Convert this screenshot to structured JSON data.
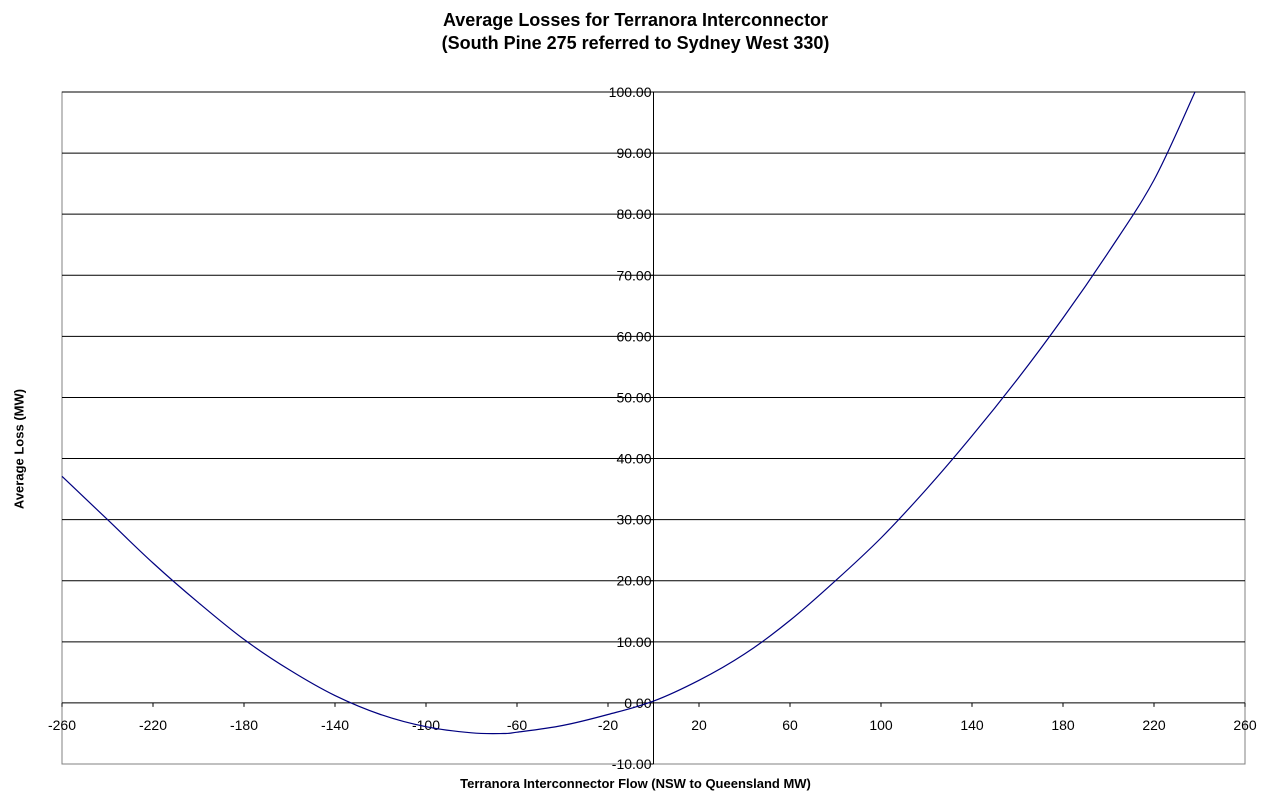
{
  "chart_data": {
    "type": "line",
    "title": "Average Losses for Terranora Interconnector",
    "subtitle": "(South Pine 275 referred to Sydney West 330)",
    "xlabel": "Terranora Interconnector  Flow (NSW to Queensland  MW)",
    "ylabel": "Average Loss (MW)",
    "xlim": [
      -260,
      260
    ],
    "ylim": [
      -10,
      100
    ],
    "x_ticks": [
      -260,
      -220,
      -180,
      -140,
      -100,
      -60,
      -20,
      20,
      60,
      100,
      140,
      180,
      220,
      260
    ],
    "y_ticks": [
      "-10.00",
      "0.00",
      "10.00",
      "20.00",
      "30.00",
      "40.00",
      "50.00",
      "60.00",
      "70.00",
      "80.00",
      "90.00",
      "100.00"
    ],
    "grid": "horizontal",
    "series": [
      {
        "color": "#000080",
        "x": [
          -260,
          -240,
          -220,
          -200,
          -180,
          -160,
          -140,
          -120,
          -100,
          -80,
          -66,
          -60,
          -40,
          -20,
          0,
          20,
          40,
          60,
          80,
          100,
          120,
          140,
          160,
          180,
          200,
          220,
          238
        ],
        "y": [
          37.1,
          30.0,
          22.9,
          16.4,
          10.4,
          5.4,
          1.2,
          -1.9,
          -3.9,
          -4.9,
          -5.0,
          -4.8,
          -3.7,
          -1.9,
          0.3,
          3.7,
          8.0,
          13.5,
          20.0,
          27.0,
          35.0,
          43.7,
          53.0,
          63.0,
          73.8,
          85.6,
          100.0
        ]
      }
    ]
  }
}
